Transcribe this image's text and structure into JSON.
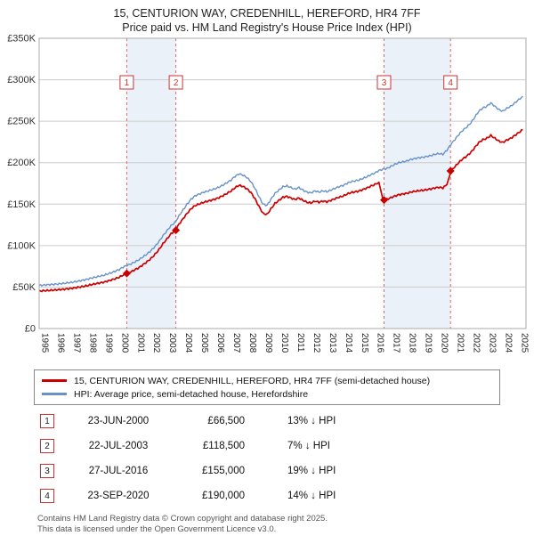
{
  "header": {
    "title": "15, CENTURION WAY, CREDENHILL, HEREFORD, HR4 7FF",
    "subtitle": "Price paid vs. HM Land Registry's House Price Index (HPI)"
  },
  "legend": {
    "property_label": "15, CENTURION WAY, CREDENHILL, HEREFORD, HR4 7FF (semi-detached house)",
    "hpi_label": "HPI: Average price, semi-detached house, Herefordshire"
  },
  "colors": {
    "property": "#cc0000",
    "hpi": "#6692c8",
    "band": "#dde7f5",
    "sale_line": "#dd6666",
    "marker": "#cc3333",
    "grid": "#cccccc",
    "border": "#aaaaaa"
  },
  "transactions": [
    {
      "num": "1",
      "date": "23-JUN-2000",
      "price": "£66,500",
      "vs_hpi": "13% ↓ HPI"
    },
    {
      "num": "2",
      "date": "22-JUL-2003",
      "price": "£118,500",
      "vs_hpi": "7% ↓ HPI"
    },
    {
      "num": "3",
      "date": "27-JUL-2016",
      "price": "£155,000",
      "vs_hpi": "19% ↓ HPI"
    },
    {
      "num": "4",
      "date": "23-SEP-2020",
      "price": "£190,000",
      "vs_hpi": "14% ↓ HPI"
    }
  ],
  "footer": {
    "line1": "Contains HM Land Registry data © Crown copyright and database right 2025.",
    "line2": "This data is licensed under the Open Government Licence v3.0."
  },
  "chart_data": {
    "type": "line",
    "title": "15, CENTURION WAY, CREDENHILL, HEREFORD, HR4 7FF",
    "subtitle": "Price paid vs. HM Land Registry's House Price Index (HPI)",
    "y_unit": "GBP thousands",
    "x_start": 1995,
    "x_step": 0.25,
    "x_range": [
      1995,
      2025.45
    ],
    "y_range_k": [
      0,
      350
    ],
    "y_ticks": [
      "£0",
      "£50K",
      "£100K",
      "£150K",
      "£200K",
      "£250K",
      "£300K",
      "£350K"
    ],
    "x_ticks": [
      1995,
      1996,
      1997,
      1998,
      1999,
      2000,
      2001,
      2002,
      2003,
      2004,
      2005,
      2006,
      2007,
      2008,
      2009,
      2010,
      2011,
      2012,
      2013,
      2014,
      2015,
      2016,
      2017,
      2018,
      2019,
      2020,
      2021,
      2022,
      2023,
      2024,
      2025
    ],
    "bands": [
      [
        2000.48,
        2003.55
      ],
      [
        2016.57,
        2020.73
      ]
    ],
    "sales": [
      {
        "label": "1",
        "x": 2000.48,
        "y": 66.5
      },
      {
        "label": "2",
        "x": 2003.55,
        "y": 118.5
      },
      {
        "label": "3",
        "x": 2016.57,
        "y": 155
      },
      {
        "label": "4",
        "x": 2020.73,
        "y": 190
      }
    ],
    "series": [
      {
        "name": "hpi",
        "color_key": "hpi",
        "y": [
          52,
          52.3,
          52.8,
          53,
          53.4,
          53.9,
          54.4,
          55,
          55.6,
          56.4,
          57.3,
          58.3,
          59.4,
          60.8,
          61.9,
          63,
          64,
          65.5,
          67.2,
          69,
          71,
          74,
          76.2,
          78,
          80.5,
          83,
          86.5,
          90,
          94,
          99,
          105,
          112,
          118,
          124,
          128,
          136,
          143,
          150,
          156,
          160,
          162,
          164,
          165.5,
          167,
          168.5,
          170.5,
          173,
          176,
          179,
          183.5,
          186.5,
          185,
          182,
          177,
          169,
          159,
          150,
          148.5,
          156,
          163,
          167,
          171,
          172,
          170,
          168,
          170,
          167,
          164.5,
          163.5,
          166,
          164.5,
          166,
          165,
          167,
          169,
          171,
          172.5,
          175,
          177,
          178,
          179,
          181,
          183,
          185.5,
          187.5,
          190.5,
          192,
          193,
          195.5,
          198,
          200,
          201,
          202,
          204,
          205,
          206,
          206.5,
          207.5,
          208.5,
          210,
          211,
          210,
          215,
          222,
          228,
          234,
          239,
          243,
          248,
          255,
          262,
          266,
          268,
          272,
          268,
          264,
          262,
          265.5,
          268,
          272,
          276,
          280
        ]
      },
      {
        "name": "price-paid",
        "color_key": "property",
        "y": [
          45.2,
          45.5,
          45.9,
          46.1,
          46.5,
          46.9,
          47.3,
          47.9,
          48.4,
          49.1,
          49.9,
          50.7,
          51.7,
          52.9,
          53.9,
          54.8,
          55.7,
          57,
          58.5,
          60,
          61.8,
          64.4,
          66.5,
          68.4,
          71,
          73.5,
          77,
          80.6,
          84.5,
          89.5,
          95.3,
          102.3,
          108.2,
          114.2,
          118.5,
          125.9,
          132.4,
          138.9,
          144.5,
          148.2,
          150,
          151.9,
          153.3,
          154.6,
          156,
          157.9,
          160.2,
          163,
          165.8,
          169.9,
          172.7,
          171.3,
          168.5,
          163.9,
          156.5,
          147.2,
          138.9,
          137.5,
          144.5,
          150.9,
          154.6,
          158.3,
          159.3,
          157.4,
          155.6,
          157.4,
          154.6,
          152.3,
          151.4,
          153.7,
          152.3,
          153.7,
          152.8,
          154.6,
          156.5,
          158.3,
          159.7,
          162.1,
          163.9,
          164.8,
          165.8,
          167.6,
          169.5,
          171.8,
          173.6,
          176.4,
          155,
          155.8,
          157.8,
          159.8,
          161.4,
          162.2,
          163,
          164.6,
          165.4,
          166.2,
          166.6,
          167.5,
          168.3,
          169.5,
          170.3,
          169.5,
          173.5,
          190,
          195.2,
          200.3,
          204.6,
          208,
          212.3,
          218.3,
          224.3,
          227.7,
          229.4,
          232.8,
          229.4,
          226,
          224.3,
          227.3,
          229.4,
          232.8,
          236.3,
          239.7
        ]
      }
    ]
  }
}
